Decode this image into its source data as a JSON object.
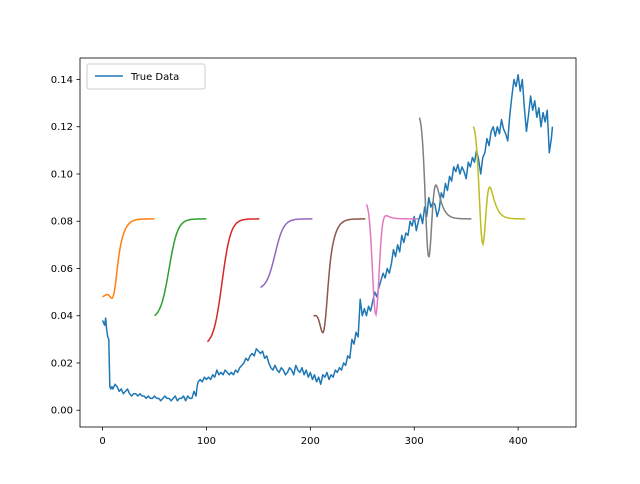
{
  "chart_data": {
    "type": "line",
    "title": "",
    "xlabel": "",
    "ylabel": "",
    "xlim": [
      -21.7,
      455.7
    ],
    "ylim": [
      -0.0071,
      0.1491
    ],
    "xticks": [
      0,
      100,
      200,
      300,
      400
    ],
    "yticks": [
      0.0,
      0.02,
      0.04,
      0.06,
      0.08,
      0.1,
      0.12,
      0.14
    ],
    "ytick_labels": [
      "0.00",
      "0.02",
      "0.04",
      "0.06",
      "0.08",
      "0.10",
      "0.12",
      "0.14"
    ],
    "legend": {
      "position": "top-left",
      "entries": [
        "True Data"
      ]
    },
    "grid": false,
    "true_data": {
      "name": "True Data",
      "color": "#1f77b4",
      "points": [
        [
          0,
          0.038
        ],
        [
          2,
          0.036
        ],
        [
          3,
          0.039
        ],
        [
          4,
          0.034
        ],
        [
          5,
          0.031
        ],
        [
          6,
          0.03
        ],
        [
          7,
          0.01
        ],
        [
          8,
          0.009
        ],
        [
          9,
          0.01
        ],
        [
          10,
          0.009
        ],
        [
          12,
          0.011
        ],
        [
          14,
          0.01
        ],
        [
          16,
          0.008
        ],
        [
          18,
          0.009
        ],
        [
          20,
          0.007
        ],
        [
          22,
          0.008
        ],
        [
          24,
          0.009
        ],
        [
          26,
          0.007
        ],
        [
          28,
          0.006
        ],
        [
          30,
          0.007
        ],
        [
          32,
          0.007
        ],
        [
          34,
          0.006
        ],
        [
          36,
          0.007
        ],
        [
          38,
          0.006
        ],
        [
          40,
          0.006
        ],
        [
          42,
          0.005
        ],
        [
          44,
          0.006
        ],
        [
          46,
          0.005
        ],
        [
          48,
          0.005
        ],
        [
          50,
          0.006
        ],
        [
          52,
          0.005
        ],
        [
          54,
          0.005
        ],
        [
          56,
          0.004
        ],
        [
          58,
          0.005
        ],
        [
          60,
          0.006
        ],
        [
          62,
          0.005
        ],
        [
          64,
          0.005
        ],
        [
          66,
          0.004
        ],
        [
          68,
          0.005
        ],
        [
          70,
          0.006
        ],
        [
          72,
          0.004
        ],
        [
          74,
          0.005
        ],
        [
          76,
          0.005
        ],
        [
          78,
          0.006
        ],
        [
          80,
          0.004
        ],
        [
          82,
          0.006
        ],
        [
          84,
          0.005
        ],
        [
          86,
          0.005
        ],
        [
          88,
          0.008
        ],
        [
          90,
          0.006
        ],
        [
          91,
          0.01
        ],
        [
          92,
          0.012
        ],
        [
          94,
          0.013
        ],
        [
          96,
          0.012
        ],
        [
          98,
          0.014
        ],
        [
          100,
          0.013
        ],
        [
          102,
          0.014
        ],
        [
          104,
          0.013
        ],
        [
          106,
          0.015
        ],
        [
          108,
          0.014
        ],
        [
          110,
          0.017
        ],
        [
          112,
          0.015
        ],
        [
          114,
          0.016
        ],
        [
          116,
          0.015
        ],
        [
          118,
          0.017
        ],
        [
          120,
          0.016
        ],
        [
          122,
          0.015
        ],
        [
          124,
          0.016
        ],
        [
          126,
          0.015
        ],
        [
          128,
          0.017
        ],
        [
          130,
          0.016
        ],
        [
          132,
          0.018
        ],
        [
          134,
          0.019
        ],
        [
          136,
          0.02
        ],
        [
          138,
          0.022
        ],
        [
          140,
          0.021
        ],
        [
          142,
          0.023
        ],
        [
          144,
          0.024
        ],
        [
          146,
          0.023
        ],
        [
          148,
          0.026
        ],
        [
          150,
          0.025
        ],
        [
          152,
          0.024
        ],
        [
          154,
          0.025
        ],
        [
          156,
          0.022
        ],
        [
          158,
          0.023
        ],
        [
          160,
          0.02
        ],
        [
          162,
          0.018
        ],
        [
          164,
          0.017
        ],
        [
          166,
          0.019
        ],
        [
          168,
          0.017
        ],
        [
          170,
          0.016
        ],
        [
          172,
          0.018
        ],
        [
          174,
          0.017
        ],
        [
          176,
          0.015
        ],
        [
          178,
          0.016
        ],
        [
          180,
          0.018
        ],
        [
          182,
          0.017
        ],
        [
          184,
          0.015
        ],
        [
          186,
          0.019
        ],
        [
          188,
          0.017
        ],
        [
          190,
          0.016
        ],
        [
          192,
          0.018
        ],
        [
          194,
          0.015
        ],
        [
          196,
          0.017
        ],
        [
          198,
          0.014
        ],
        [
          200,
          0.016
        ],
        [
          202,
          0.013
        ],
        [
          204,
          0.015
        ],
        [
          206,
          0.012
        ],
        [
          208,
          0.014
        ],
        [
          210,
          0.011
        ],
        [
          212,
          0.015
        ],
        [
          214,
          0.014
        ],
        [
          216,
          0.016
        ],
        [
          218,
          0.013
        ],
        [
          220,
          0.015
        ],
        [
          222,
          0.014
        ],
        [
          224,
          0.017
        ],
        [
          226,
          0.016
        ],
        [
          228,
          0.018
        ],
        [
          230,
          0.017
        ],
        [
          232,
          0.02
        ],
        [
          234,
          0.019
        ],
        [
          236,
          0.023
        ],
        [
          238,
          0.022
        ],
        [
          240,
          0.03
        ],
        [
          242,
          0.028
        ],
        [
          244,
          0.033
        ],
        [
          246,
          0.031
        ],
        [
          248,
          0.047
        ],
        [
          250,
          0.04
        ],
        [
          252,
          0.043
        ],
        [
          254,
          0.04
        ],
        [
          256,
          0.044
        ],
        [
          258,
          0.042
        ],
        [
          260,
          0.046
        ],
        [
          262,
          0.05
        ],
        [
          264,
          0.048
        ],
        [
          266,
          0.052
        ],
        [
          268,
          0.055
        ],
        [
          270,
          0.058
        ],
        [
          272,
          0.056
        ],
        [
          274,
          0.06
        ],
        [
          276,
          0.058
        ],
        [
          278,
          0.062
        ],
        [
          280,
          0.068
        ],
        [
          282,
          0.065
        ],
        [
          284,
          0.07
        ],
        [
          286,
          0.067
        ],
        [
          288,
          0.074
        ],
        [
          290,
          0.071
        ],
        [
          292,
          0.075
        ],
        [
          294,
          0.074
        ],
        [
          296,
          0.08
        ],
        [
          298,
          0.078
        ],
        [
          300,
          0.082
        ],
        [
          302,
          0.076
        ],
        [
          304,
          0.08
        ],
        [
          306,
          0.083
        ],
        [
          308,
          0.079
        ],
        [
          310,
          0.086
        ],
        [
          312,
          0.082
        ],
        [
          314,
          0.09
        ],
        [
          316,
          0.086
        ],
        [
          318,
          0.088
        ],
        [
          320,
          0.087
        ],
        [
          322,
          0.082
        ],
        [
          324,
          0.085
        ],
        [
          326,
          0.092
        ],
        [
          328,
          0.09
        ],
        [
          330,
          0.096
        ],
        [
          332,
          0.093
        ],
        [
          334,
          0.099
        ],
        [
          336,
          0.097
        ],
        [
          338,
          0.103
        ],
        [
          340,
          0.101
        ],
        [
          342,
          0.104
        ],
        [
          344,
          0.1
        ],
        [
          346,
          0.103
        ],
        [
          348,
          0.101
        ],
        [
          350,
          0.098
        ],
        [
          352,
          0.105
        ],
        [
          354,
          0.103
        ],
        [
          356,
          0.107
        ],
        [
          358,
          0.105
        ],
        [
          360,
          0.11
        ],
        [
          362,
          0.106
        ],
        [
          364,
          0.1
        ],
        [
          366,
          0.107
        ],
        [
          368,
          0.109
        ],
        [
          370,
          0.115
        ],
        [
          372,
          0.112
        ],
        [
          374,
          0.118
        ],
        [
          376,
          0.12
        ],
        [
          378,
          0.116
        ],
        [
          380,
          0.12
        ],
        [
          382,
          0.117
        ],
        [
          384,
          0.123
        ],
        [
          386,
          0.119
        ],
        [
          388,
          0.117
        ],
        [
          390,
          0.114
        ],
        [
          392,
          0.125
        ],
        [
          394,
          0.133
        ],
        [
          396,
          0.14
        ],
        [
          398,
          0.137
        ],
        [
          400,
          0.142
        ],
        [
          402,
          0.135
        ],
        [
          404,
          0.14
        ],
        [
          406,
          0.128
        ],
        [
          408,
          0.118
        ],
        [
          410,
          0.125
        ],
        [
          412,
          0.133
        ],
        [
          414,
          0.127
        ],
        [
          416,
          0.131
        ],
        [
          418,
          0.124
        ],
        [
          420,
          0.128
        ],
        [
          422,
          0.12
        ],
        [
          424,
          0.126
        ],
        [
          426,
          0.122
        ],
        [
          428,
          0.127
        ],
        [
          430,
          0.109
        ],
        [
          432,
          0.115
        ],
        [
          433,
          0.12
        ]
      ]
    },
    "predictions": [
      {
        "color": "#ff7f0e",
        "x_start": 0,
        "length": 50,
        "y_start": 0.048,
        "y_end": 0.081,
        "dip": 0.001
      },
      {
        "color": "#2ca02c",
        "x_start": 50,
        "length": 50,
        "y_start": 0.04,
        "y_end": 0.081,
        "dip": 0.0
      },
      {
        "color": "#d62728",
        "x_start": 101,
        "length": 50,
        "y_start": 0.029,
        "y_end": 0.081,
        "dip": 0.0
      },
      {
        "color": "#9467bd",
        "x_start": 152,
        "length": 50,
        "y_start": 0.052,
        "y_end": 0.081,
        "dip": 0.0
      },
      {
        "color": "#8c564b",
        "x_start": 203,
        "length": 50,
        "y_start": 0.04,
        "y_end": 0.081,
        "dip": 0.008
      },
      {
        "color": "#e377c2",
        "x_start": 254,
        "length": 50,
        "y_start": 0.088,
        "y_end": 0.081,
        "dip": 0.038
      },
      {
        "color": "#7f7f7f",
        "x_start": 305,
        "length": 50,
        "y_start": 0.125,
        "y_end": 0.081,
        "dip": 0.062
      },
      {
        "color": "#bcbd22",
        "x_start": 357,
        "length": 50,
        "y_start": 0.121,
        "y_end": 0.081,
        "dip": 0.068
      }
    ]
  }
}
